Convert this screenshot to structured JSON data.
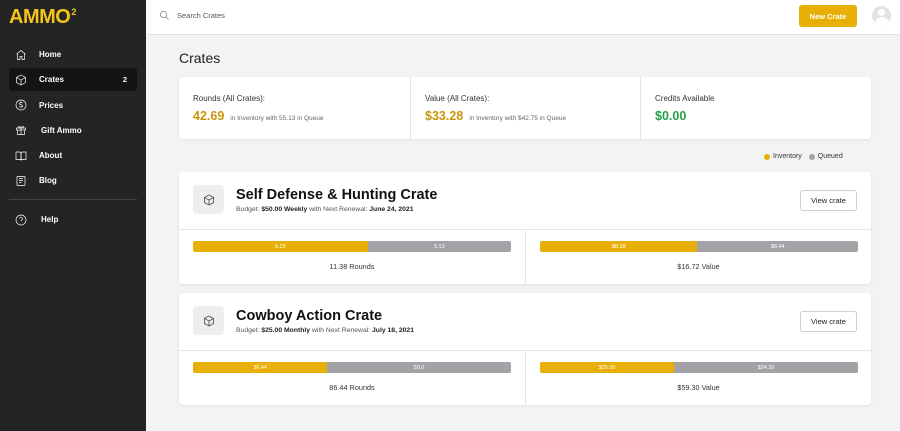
{
  "app": {
    "logo": "AMMO",
    "logo_sup": "2"
  },
  "sidebar": {
    "items": [
      {
        "label": "Home",
        "icon": "home-icon"
      },
      {
        "label": "Crates",
        "icon": "box-icon",
        "badge": "2",
        "active": true
      },
      {
        "label": "Prices",
        "icon": "dollar-icon"
      },
      {
        "label": "Gift Ammo",
        "icon": "gift-icon"
      },
      {
        "label": "About",
        "icon": "book-icon"
      },
      {
        "label": "Blog",
        "icon": "newspaper-icon"
      }
    ],
    "help": {
      "label": "Help",
      "icon": "help-circle-icon"
    }
  },
  "topbar": {
    "search_placeholder": "Search Crates",
    "new_crate_label": "New Crate"
  },
  "page": {
    "title": "Crates"
  },
  "stats": {
    "rounds": {
      "label": "Rounds (All Crates):",
      "value": "42.69",
      "sub": "in Inventory with 55.13 in Queue"
    },
    "value": {
      "label": "Value (All Crates):",
      "value": "$33.28",
      "sub": "in Inventory with $42.75 in Queue"
    },
    "credits": {
      "label": "Credits Available",
      "value": "$0.00"
    }
  },
  "legend": {
    "inventory": "Inventory",
    "queued": "Queued"
  },
  "colors": {
    "accent": "#e8b007",
    "queued": "#a3a3a7",
    "credit_green": "#24a148",
    "gold_text": "#c9950a"
  },
  "crates": [
    {
      "title": "Self Defense & Hunting Crate",
      "budget_prefix": "Budget:",
      "budget_amount": "$50.00 Weekly",
      "budget_mid": "with Next Renewal:",
      "renewal_date": "June 24, 2021",
      "view_label": "View crate",
      "rounds": {
        "inventory_label": "6.25",
        "queued_label": "5.13",
        "inventory": 6.25,
        "queued": 5.13,
        "total_label": "11.38 Rounds"
      },
      "value": {
        "inventory_label": "$8.28",
        "queued_label": "$8.44",
        "inventory": 8.28,
        "queued": 8.44,
        "total_label": "$16.72 Value"
      }
    },
    {
      "title": "Cowboy Action Crate",
      "budget_prefix": "Budget:",
      "budget_amount": "$25.00 Monthly",
      "budget_mid": "with Next Renewal:",
      "renewal_date": "July 18, 2021",
      "view_label": "View crate",
      "rounds": {
        "inventory_label": "36.44",
        "queued_label": "50.0",
        "inventory": 36.44,
        "queued": 50.0,
        "total_label": "86.44 Rounds"
      },
      "value": {
        "inventory_label": "$25.00",
        "queued_label": "$34.30",
        "inventory": 25.0,
        "queued": 34.3,
        "total_label": "$59.30 Value"
      }
    }
  ]
}
